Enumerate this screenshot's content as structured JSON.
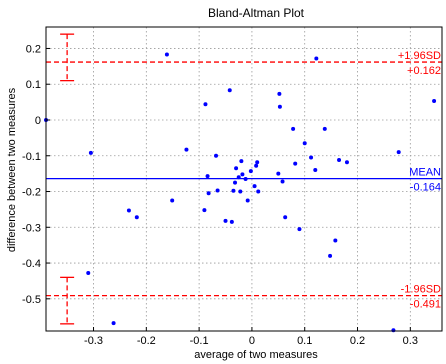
{
  "chart_data": {
    "type": "scatter",
    "title": "Bland-Altman Plot",
    "xlabel": "average of two measures",
    "ylabel": "difference between two measures",
    "xlim": [
      -0.39,
      0.36
    ],
    "ylim": [
      -0.59,
      0.26
    ],
    "grid": true,
    "x_ticks": [
      -0.3,
      -0.2,
      -0.1,
      0,
      0.1,
      0.2,
      0.3
    ],
    "x_tick_labels": [
      "-0.3",
      "-0.2",
      "-0.1",
      "0",
      "0.1",
      "0.2",
      "0.3"
    ],
    "y_ticks": [
      0.2,
      0.1,
      0,
      -0.1,
      -0.2,
      -0.3,
      -0.4,
      -0.5
    ],
    "y_tick_labels": [
      "0.2",
      "0.1",
      "0",
      "-0.1",
      "-0.2",
      "-0.3",
      "-0.4",
      "-0.5"
    ],
    "series": [
      {
        "point_color": "#0000ff",
        "points": [
          [
            -0.39,
            0.0
          ],
          [
            -0.305,
            -0.092
          ],
          [
            -0.31,
            -0.428
          ],
          [
            -0.262,
            -0.568
          ],
          [
            -0.233,
            -0.253
          ],
          [
            -0.218,
            -0.272
          ],
          [
            -0.161,
            0.183
          ],
          [
            -0.151,
            -0.225
          ],
          [
            -0.124,
            -0.083
          ],
          [
            -0.09,
            -0.252
          ],
          [
            -0.088,
            0.044
          ],
          [
            -0.082,
            -0.205
          ],
          [
            -0.084,
            -0.157
          ],
          [
            -0.068,
            -0.1
          ],
          [
            -0.065,
            -0.197
          ],
          [
            -0.05,
            -0.282
          ],
          [
            -0.042,
            0.083
          ],
          [
            -0.038,
            -0.285
          ],
          [
            -0.035,
            -0.198
          ],
          [
            -0.032,
            -0.175
          ],
          [
            -0.03,
            -0.135
          ],
          [
            -0.025,
            -0.16
          ],
          [
            -0.02,
            -0.115
          ],
          [
            -0.018,
            -0.152
          ],
          [
            -0.022,
            -0.2
          ],
          [
            -0.012,
            -0.165
          ],
          [
            -0.008,
            -0.225
          ],
          [
            -0.002,
            -0.143
          ],
          [
            0.005,
            -0.185
          ],
          [
            0.008,
            -0.128
          ],
          [
            0.01,
            -0.118
          ],
          [
            0.012,
            -0.2
          ],
          [
            0.05,
            -0.15
          ],
          [
            0.052,
            0.073
          ],
          [
            0.053,
            0.037
          ],
          [
            0.058,
            -0.172
          ],
          [
            0.063,
            -0.272
          ],
          [
            0.078,
            -0.025
          ],
          [
            0.082,
            -0.122
          ],
          [
            0.09,
            -0.305
          ],
          [
            0.1,
            -0.065
          ],
          [
            0.112,
            -0.105
          ],
          [
            0.12,
            -0.14
          ],
          [
            0.122,
            0.172
          ],
          [
            0.138,
            -0.025
          ],
          [
            0.148,
            -0.38
          ],
          [
            0.158,
            -0.337
          ],
          [
            0.165,
            -0.112
          ],
          [
            0.18,
            -0.118
          ],
          [
            0.268,
            -0.588
          ],
          [
            0.278,
            -0.09
          ],
          [
            0.345,
            0.053
          ]
        ]
      }
    ],
    "reference_lines": [
      {
        "name": "MEAN",
        "value": -0.164,
        "value_label": "-0.164",
        "color": "#0000ff",
        "style": "solid"
      },
      {
        "name": "+1.96SD",
        "value": 0.162,
        "value_label": "+0.162",
        "color": "#ff0000",
        "style": "dashed"
      },
      {
        "name": "-1.96SD",
        "value": -0.491,
        "value_label": "-0.491",
        "color": "#ff0000",
        "style": "dashed"
      }
    ],
    "error_bars": [
      {
        "x": -0.35,
        "low": 0.11,
        "high": 0.24,
        "color": "#ff0000"
      },
      {
        "x": -0.35,
        "low": -0.57,
        "high": -0.44,
        "color": "#ff0000"
      }
    ]
  }
}
